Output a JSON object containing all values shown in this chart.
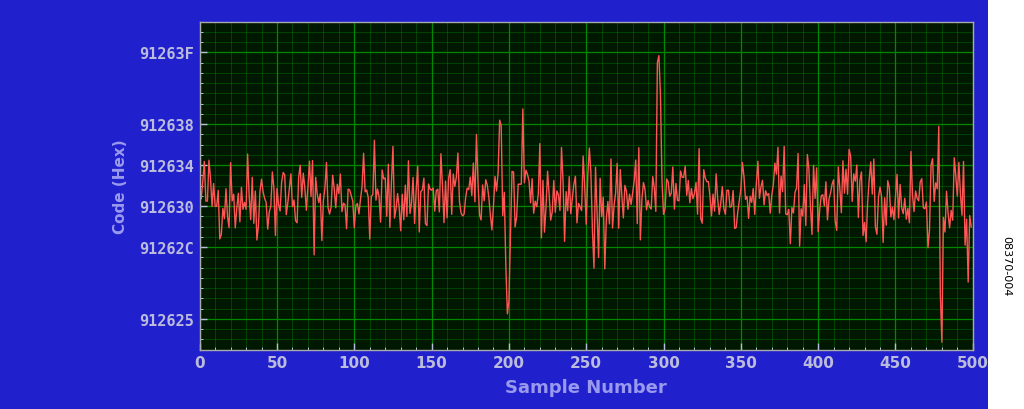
{
  "outer_bg": "#2020CC",
  "plot_bg": "#001800",
  "grid_major_color": "#008800",
  "grid_minor_color": "#004400",
  "line_color": "#FF5555",
  "tick_label_color": "#BBBBDD",
  "xlabel": "Sample Number",
  "ylabel": "Code (Hex)",
  "label_color": "#9999EE",
  "xlabel_fontsize": 13,
  "ylabel_fontsize": 11,
  "tick_fontsize": 11,
  "xmin": 0,
  "xmax": 500,
  "xticks": [
    0,
    50,
    100,
    150,
    200,
    250,
    300,
    350,
    400,
    450,
    500
  ],
  "ytick_hex_labels": [
    "912625",
    "91262C",
    "912630",
    "912634",
    "912638",
    "91263F"
  ],
  "ytick_decimal": [
    9512485,
    9512492,
    9512496,
    9512500,
    9512504,
    9512511
  ],
  "ymin": 9512482,
  "ymax": 9512514,
  "n_samples": 500,
  "seed": 42,
  "signal_mean": 9512497,
  "signal_std": 2.2,
  "annotation": "08370-004",
  "line_width": 1.0
}
